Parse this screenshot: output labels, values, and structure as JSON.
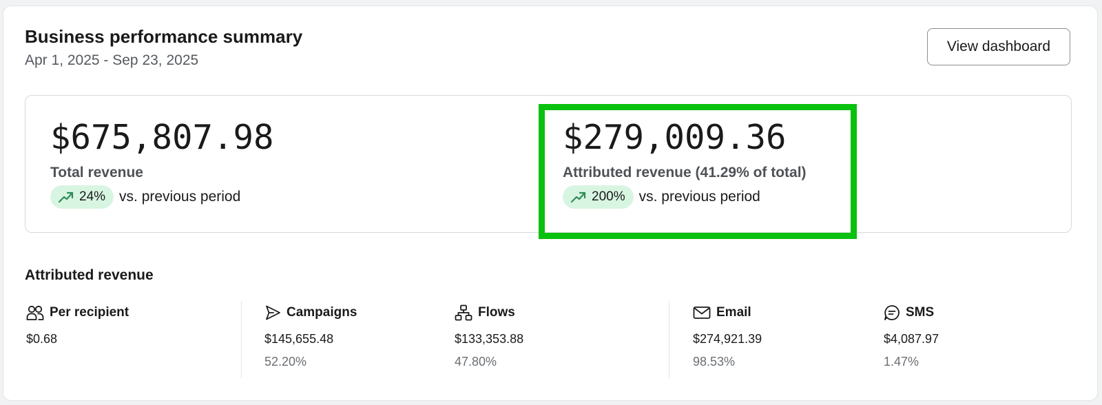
{
  "header": {
    "title": "Business performance summary",
    "date_range": "Apr 1, 2025 - Sep 23, 2025",
    "view_button": "View dashboard"
  },
  "metrics": [
    {
      "value": "$675,807.98",
      "label": "Total revenue",
      "change": "24%",
      "comparison": "vs. previous period",
      "trend_icon": "trending-up-icon"
    },
    {
      "value": "$279,009.36",
      "label": "Attributed revenue (41.29% of total)",
      "change": "200%",
      "comparison": "vs. previous period",
      "trend_icon": "trending-up-icon"
    }
  ],
  "attributed": {
    "title": "Attributed revenue",
    "items": [
      {
        "icon": "people-icon",
        "label": "Per recipient",
        "value": "$0.68",
        "pct": ""
      },
      {
        "icon": "send-icon",
        "label": "Campaigns",
        "value": "$145,655.48",
        "pct": "52.20%"
      },
      {
        "icon": "flow-icon",
        "label": "Flows",
        "value": "$133,353.88",
        "pct": "47.80%"
      },
      {
        "icon": "mail-icon",
        "label": "Email",
        "value": "$274,921.39",
        "pct": "98.53%"
      },
      {
        "icon": "chat-icon",
        "label": "SMS",
        "value": "$4,087.97",
        "pct": "1.47%"
      }
    ]
  },
  "colors": {
    "positive_pill_bg": "#d8f5e1",
    "positive_icon": "#2e8b57",
    "highlight_border": "#09c10e"
  }
}
